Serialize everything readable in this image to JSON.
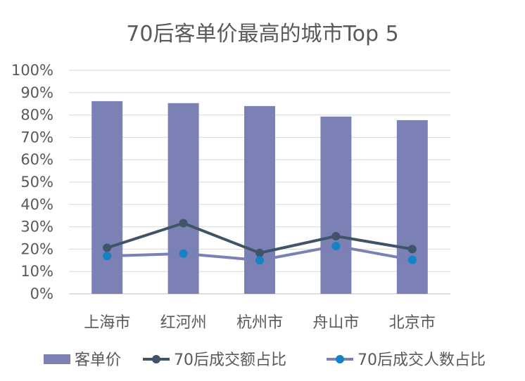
{
  "chart_data": {
    "type": "bar",
    "title": "70后客单价最高的城市Top 5",
    "categories": [
      "上海市",
      "红河州",
      "杭州市",
      "舟山市",
      "北京市"
    ],
    "ylim": [
      0,
      100
    ],
    "yticks": [
      "0%",
      "10%",
      "20%",
      "30%",
      "40%",
      "50%",
      "60%",
      "70%",
      "80%",
      "90%",
      "100%"
    ],
    "grid": true,
    "legend_position": "bottom",
    "series": [
      {
        "name": "客单价",
        "kind": "bar",
        "color": "#7b80b5",
        "values": [
          86.2,
          85.3,
          84.0,
          79.3,
          77.7
        ]
      },
      {
        "name": "70后成交额占比",
        "kind": "line",
        "line_color": "#3f5468",
        "marker_color": "#3f5468",
        "values": [
          20.6,
          31.6,
          18.3,
          25.8,
          20.0
        ]
      },
      {
        "name": "70后成交人数占比",
        "kind": "line",
        "line_color": "#7b80b5",
        "marker_color": "#1283c4",
        "values": [
          16.9,
          18.0,
          15.0,
          21.4,
          15.2
        ]
      }
    ]
  }
}
